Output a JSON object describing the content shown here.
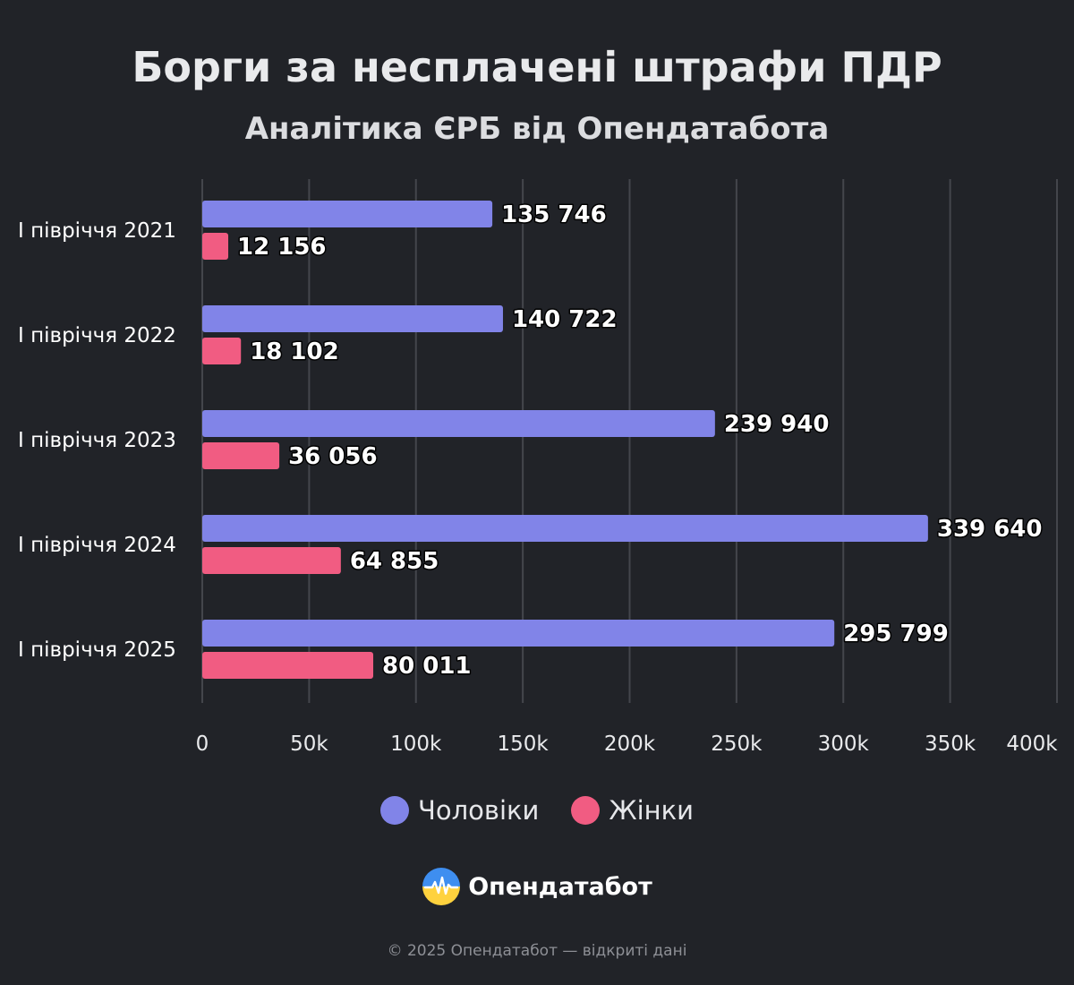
{
  "header": {
    "title": "Борги за несплачені штрафи ПДР",
    "subtitle": "Аналітика ЄРБ від Опендатабота"
  },
  "chart_data": {
    "type": "bar",
    "orientation": "horizontal",
    "title": "Борги за несплачені штрафи ПДР",
    "subtitle": "Аналітика ЄРБ від Опендатабота",
    "categories": [
      "І півріччя 2021",
      "І півріччя 2022",
      "І півріччя 2023",
      "І півріччя 2024",
      "І півріччя 2025"
    ],
    "series": [
      {
        "name": "Чоловіки",
        "color": "#8184e8",
        "values": [
          135746,
          140722,
          239940,
          339640,
          295799
        ],
        "labels": [
          "135 746",
          "140 722",
          "239 940",
          "339 640",
          "295 799"
        ]
      },
      {
        "name": "Жінки",
        "color": "#f15c82",
        "values": [
          12156,
          18102,
          36056,
          64855,
          80011
        ],
        "labels": [
          "12 156",
          "18 102",
          "36 056",
          "64 855",
          "80 011"
        ]
      }
    ],
    "xlim": [
      0,
      400000
    ],
    "xticks": [
      0,
      50000,
      100000,
      150000,
      200000,
      250000,
      300000,
      350000,
      400000
    ],
    "xtick_labels": [
      "0",
      "50k",
      "100k",
      "150k",
      "200k",
      "250k",
      "300k",
      "350k",
      "400k"
    ],
    "xlabel": "",
    "ylabel": "",
    "grid": "vertical",
    "legend_position": "bottom-center"
  },
  "brand": {
    "name": "Опендатабот",
    "logo_icon": "opendatabot-logo-icon"
  },
  "footer": {
    "text": "© 2025 Опендатабот — відкриті дані"
  },
  "colors": {
    "background": "#212328",
    "grid": "#44464c"
  }
}
